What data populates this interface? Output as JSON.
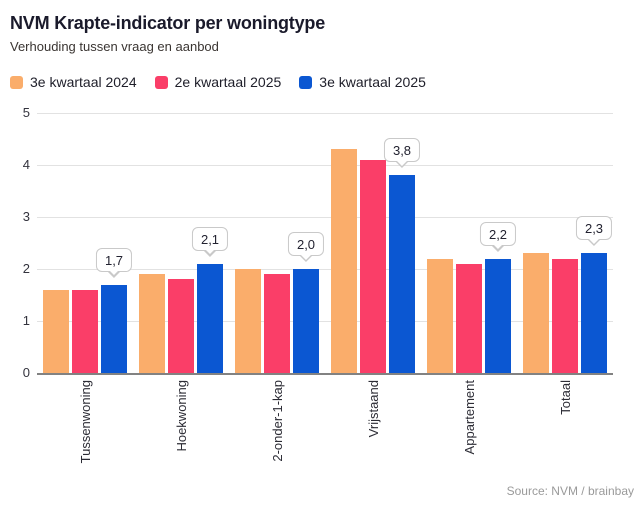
{
  "header": {
    "title": "NVM Krapte-indicator per woningtype",
    "subtitle": "Verhouding tussen vraag en aanbod"
  },
  "source": "Source: NVM / brainbay",
  "colors": {
    "orange": "#FAAD6B",
    "pink": "#FA3E68",
    "blue": "#0B57D2",
    "grid": "#e2e2e2",
    "axis": "#828282",
    "title_text": "#1a1a2b",
    "source_text": "#9a9a9a"
  },
  "chart_data": {
    "type": "bar",
    "title": "NVM Krapte-indicator per woningtype",
    "subtitle": "Verhouding tussen vraag en aanbod",
    "categories": [
      "Tussenwoning",
      "Hoekwoning",
      "2-onder-1-kap",
      "Vrijstaand",
      "Appartement",
      "Totaal"
    ],
    "series": [
      {
        "name": "3e kwartaal 2024",
        "color": "#FAAD6B",
        "values": [
          1.6,
          1.9,
          2.0,
          4.3,
          2.2,
          2.3
        ]
      },
      {
        "name": "2e kwartaal 2025",
        "color": "#FA3E68",
        "values": [
          1.6,
          1.8,
          1.9,
          4.1,
          2.1,
          2.2
        ]
      },
      {
        "name": "3e kwartaal 2025",
        "color": "#0B57D2",
        "values": [
          1.7,
          2.1,
          2.0,
          3.8,
          2.2,
          2.3
        ]
      }
    ],
    "callouts": {
      "series": "3e kwartaal 2025",
      "labels": [
        "1,7",
        "2,1",
        "2,0",
        "3,8",
        "2,2",
        "2,3"
      ]
    },
    "ylim": [
      0,
      5
    ],
    "yticks": [
      0,
      1,
      2,
      3,
      4,
      5
    ],
    "grid": true,
    "legend_position": "top",
    "decimal_separator": ","
  }
}
